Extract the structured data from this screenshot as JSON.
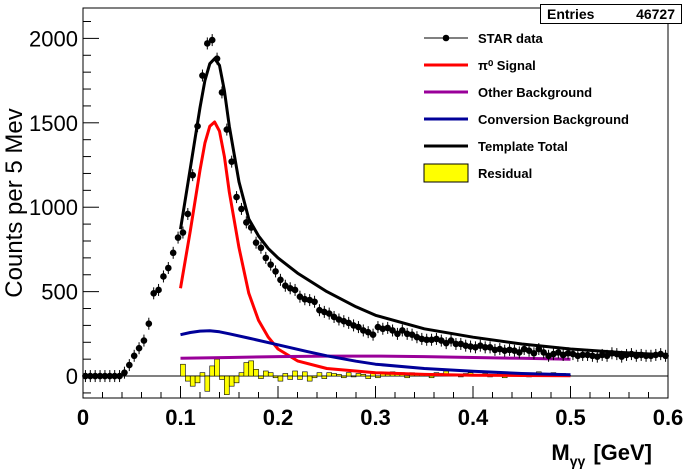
{
  "stats": {
    "label": "Entries",
    "value": "46727"
  },
  "chart_data": {
    "type": "line",
    "xlabel_main": "M",
    "xlabel_sub": "γγ",
    "xlabel_unit": "[GeV]",
    "ylabel": "Counts per 5 Mev",
    "xlim": [
      0,
      0.6
    ],
    "ylim": [
      -130,
      2180
    ],
    "x_ticks": [
      0,
      0.1,
      0.2,
      0.3,
      0.4,
      0.5,
      0.6
    ],
    "x_tick_labels": [
      "0",
      "0.1",
      "0.2",
      "0.3",
      "0.4",
      "0.5",
      "0.6"
    ],
    "y_ticks": [
      0,
      500,
      1000,
      1500,
      2000
    ],
    "y_tick_labels": [
      "0",
      "500",
      "1000",
      "1500",
      "2000"
    ],
    "legend": {
      "placement": "top-right",
      "entries": [
        {
          "label": "STAR data",
          "style": "marker",
          "color": "#000000"
        },
        {
          "label": "π⁰ Signal",
          "style": "line",
          "color": "#ff0000"
        },
        {
          "label": "Other Background",
          "style": "line",
          "color": "#990099"
        },
        {
          "label": "Conversion Background",
          "style": "line",
          "color": "#000099"
        },
        {
          "label": "Template Total",
          "style": "line",
          "color": "#000000"
        },
        {
          "label": "Residual",
          "style": "fill",
          "color": "#ffff00"
        }
      ]
    },
    "series": [
      {
        "name": "STAR data",
        "kind": "points",
        "color": "#000000",
        "x": [
          0.0025,
          0.0075,
          0.0125,
          0.0175,
          0.0225,
          0.0275,
          0.0325,
          0.0375,
          0.0425,
          0.0475,
          0.0525,
          0.0575,
          0.0625,
          0.0675,
          0.0725,
          0.0775,
          0.0825,
          0.0875,
          0.0925,
          0.0975,
          0.1025,
          0.1075,
          0.1125,
          0.1175,
          0.1225,
          0.1275,
          0.1325,
          0.1375,
          0.1425,
          0.1475,
          0.1525,
          0.1575,
          0.1625,
          0.1675,
          0.1725,
          0.1775,
          0.1825,
          0.1875,
          0.1925,
          0.1975,
          0.2025,
          0.2075,
          0.2125,
          0.2175,
          0.2225,
          0.2275,
          0.2325,
          0.2375,
          0.2425,
          0.2475,
          0.2525,
          0.2575,
          0.2625,
          0.2675,
          0.2725,
          0.2775,
          0.2825,
          0.2875,
          0.2925,
          0.2975,
          0.3025,
          0.3075,
          0.3125,
          0.3175,
          0.3225,
          0.3275,
          0.3325,
          0.3375,
          0.3425,
          0.3475,
          0.3525,
          0.3575,
          0.3625,
          0.3675,
          0.3725,
          0.3775,
          0.3825,
          0.3875,
          0.3925,
          0.3975,
          0.4025,
          0.4075,
          0.4125,
          0.4175,
          0.4225,
          0.4275,
          0.4325,
          0.4375,
          0.4425,
          0.4475,
          0.4525,
          0.4575,
          0.4625,
          0.4675,
          0.4725,
          0.4775,
          0.4825,
          0.4875,
          0.4925,
          0.4975,
          0.5025,
          0.5075,
          0.5125,
          0.5175,
          0.5225,
          0.5275,
          0.5325,
          0.5375,
          0.5425,
          0.5475,
          0.5525,
          0.5575,
          0.5625,
          0.5675,
          0.5725,
          0.5775,
          0.5825,
          0.5875,
          0.5925,
          0.5975
        ],
        "y": [
          0,
          0,
          0,
          0,
          0,
          0,
          0,
          0,
          20,
          65,
          120,
          165,
          210,
          310,
          490,
          510,
          590,
          640,
          730,
          820,
          850,
          960,
          1190,
          1480,
          1780,
          1970,
          1990,
          1880,
          1680,
          1460,
          1270,
          1060,
          990,
          910,
          880,
          790,
          760,
          700,
          660,
          620,
          570,
          535,
          520,
          510,
          470,
          455,
          450,
          440,
          390,
          380,
          370,
          350,
          335,
          325,
          315,
          300,
          290,
          270,
          260,
          245,
          290,
          280,
          285,
          270,
          250,
          270,
          250,
          245,
          230,
          220,
          215,
          215,
          220,
          210,
          195,
          210,
          190,
          190,
          180,
          175,
          170,
          180,
          170,
          170,
          155,
          160,
          150,
          155,
          150,
          140,
          160,
          150,
          135,
          160,
          140,
          120,
          130,
          140,
          125,
          135,
          130,
          120,
          125,
          125,
          120,
          115,
          125,
          120,
          135,
          130,
          115,
          125,
          130,
          120,
          125,
          120,
          120,
          125,
          130,
          120
        ]
      },
      {
        "name": "π⁰ Signal",
        "kind": "line",
        "color": "#ff0000",
        "x": [
          0.1,
          0.11,
          0.12,
          0.125,
          0.13,
          0.135,
          0.14,
          0.145,
          0.15,
          0.16,
          0.17,
          0.18,
          0.19,
          0.2,
          0.22,
          0.25,
          0.3,
          0.35,
          0.4,
          0.45,
          0.5
        ],
        "y": [
          520,
          860,
          1220,
          1380,
          1480,
          1505,
          1450,
          1300,
          1090,
          760,
          490,
          330,
          230,
          160,
          90,
          45,
          20,
          10,
          5,
          3,
          2
        ]
      },
      {
        "name": "Other Background",
        "kind": "line",
        "color": "#990099",
        "x": [
          0.1,
          0.15,
          0.2,
          0.25,
          0.3,
          0.35,
          0.4,
          0.45,
          0.5
        ],
        "y": [
          105,
          110,
          115,
          118,
          118,
          115,
          110,
          105,
          100
        ]
      },
      {
        "name": "Conversion Background",
        "kind": "line",
        "color": "#000099",
        "x": [
          0.1,
          0.11,
          0.12,
          0.13,
          0.14,
          0.15,
          0.17,
          0.2,
          0.23,
          0.25,
          0.28,
          0.3,
          0.35,
          0.4,
          0.45,
          0.5
        ],
        "y": [
          245,
          258,
          266,
          268,
          262,
          250,
          225,
          185,
          145,
          120,
          88,
          70,
          45,
          28,
          15,
          8
        ]
      },
      {
        "name": "Template Total",
        "kind": "line",
        "color": "#000000",
        "x": [
          0.1,
          0.11,
          0.12,
          0.125,
          0.13,
          0.135,
          0.14,
          0.145,
          0.15,
          0.16,
          0.17,
          0.18,
          0.19,
          0.2,
          0.22,
          0.25,
          0.28,
          0.3,
          0.35,
          0.4,
          0.45,
          0.5,
          0.55,
          0.6
        ],
        "y": [
          870,
          1230,
          1590,
          1750,
          1850,
          1880,
          1840,
          1690,
          1480,
          1150,
          930,
          830,
          755,
          700,
          610,
          500,
          410,
          360,
          280,
          230,
          190,
          160,
          140,
          125
        ]
      },
      {
        "name": "Residual",
        "kind": "hist",
        "color": "#ffff00",
        "x": [
          0.1025,
          0.1075,
          0.1125,
          0.1175,
          0.1225,
          0.1275,
          0.1325,
          0.1375,
          0.1425,
          0.1475,
          0.1525,
          0.1575,
          0.1625,
          0.1675,
          0.1725,
          0.1775,
          0.1825,
          0.1875,
          0.1925,
          0.1975,
          0.2025,
          0.2075,
          0.2125,
          0.2175,
          0.2225,
          0.2275,
          0.2325,
          0.2375,
          0.2425,
          0.2475,
          0.2525,
          0.2575,
          0.2625,
          0.2675,
          0.2725,
          0.2775,
          0.2825,
          0.2875,
          0.2925,
          0.2975,
          0.3025,
          0.3075,
          0.3125,
          0.3175,
          0.3225,
          0.3275,
          0.3325,
          0.3375,
          0.3425,
          0.3475,
          0.3525,
          0.3575,
          0.3625,
          0.3675,
          0.3725,
          0.3775,
          0.3825,
          0.3875,
          0.3925,
          0.3975,
          0.4025,
          0.4075,
          0.4125,
          0.4175,
          0.4225,
          0.4275,
          0.4325,
          0.4375,
          0.4425,
          0.4475,
          0.4525,
          0.4575,
          0.4625,
          0.4675,
          0.4725,
          0.4775,
          0.4825,
          0.4875,
          0.4925,
          0.4975
        ],
        "y": [
          70,
          -30,
          -60,
          -40,
          20,
          -90,
          60,
          100,
          -20,
          -110,
          -60,
          -40,
          20,
          80,
          90,
          40,
          -15,
          30,
          20,
          -10,
          -30,
          15,
          -20,
          30,
          -20,
          25,
          -30,
          -10,
          20,
          -15,
          20,
          15,
          10,
          -10,
          20,
          -5,
          15,
          10,
          -15,
          25,
          -10,
          15,
          10,
          25,
          15,
          20,
          -10,
          20,
          10,
          15,
          5,
          -10,
          20,
          15,
          30,
          5,
          10,
          -5,
          15,
          20,
          10,
          5,
          15,
          -5,
          10,
          25,
          -10,
          20,
          5,
          15,
          10,
          -5,
          10,
          25,
          5,
          15,
          20,
          10,
          15,
          5
        ]
      }
    ]
  }
}
